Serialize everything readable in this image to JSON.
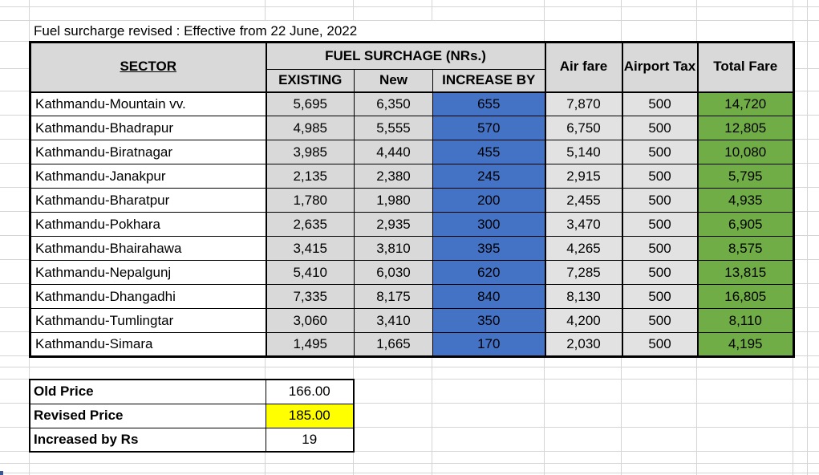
{
  "title": "Fuel surcharge revised : Effective from 22 June, 2022",
  "colors": {
    "header_bg": "#D9D9D9",
    "gray_cell": "#D9D9D9",
    "light_gray_cell": "#E2E2E2",
    "increase_bg": "#4472C4",
    "total_bg": "#70AD47",
    "revised_bg": "#FFFF00",
    "grid_line": "#D5D5D5"
  },
  "table": {
    "headers": {
      "sector": "SECTOR",
      "fuel_group": "FUEL SURCHAGE (NRs.)",
      "existing": "EXISTING",
      "new": "New",
      "increase_by": "INCREASE BY",
      "air_fare": "Air fare",
      "airport_tax": "Airport Tax",
      "total_fare": "Total Fare"
    },
    "rows": [
      {
        "sector": "Kathmandu-Mountain vv.",
        "existing": "5,695",
        "new": "6,350",
        "increase": "655",
        "air_fare": "7,870",
        "airport_tax": "500",
        "total_fare": "14,720"
      },
      {
        "sector": "Kathmandu-Bhadrapur",
        "existing": "4,985",
        "new": "5,555",
        "increase": "570",
        "air_fare": "6,750",
        "airport_tax": "500",
        "total_fare": "12,805"
      },
      {
        "sector": "Kathmandu-Biratnagar",
        "existing": "3,985",
        "new": "4,440",
        "increase": "455",
        "air_fare": "5,140",
        "airport_tax": "500",
        "total_fare": "10,080"
      },
      {
        "sector": "Kathmandu-Janakpur",
        "existing": "2,135",
        "new": "2,380",
        "increase": "245",
        "air_fare": "2,915",
        "airport_tax": "500",
        "total_fare": "5,795"
      },
      {
        "sector": "Kathmandu-Bharatpur",
        "existing": "1,780",
        "new": "1,980",
        "increase": "200",
        "air_fare": "2,455",
        "airport_tax": "500",
        "total_fare": "4,935"
      },
      {
        "sector": "Kathmandu-Pokhara",
        "existing": "2,635",
        "new": "2,935",
        "increase": "300",
        "air_fare": "3,470",
        "airport_tax": "500",
        "total_fare": "6,905"
      },
      {
        "sector": "Kathmandu-Bhairahawa",
        "existing": "3,415",
        "new": "3,810",
        "increase": "395",
        "air_fare": "4,265",
        "airport_tax": "500",
        "total_fare": "8,575"
      },
      {
        "sector": "Kathmandu-Nepalgunj",
        "existing": "5,410",
        "new": "6,030",
        "increase": "620",
        "air_fare": "7,285",
        "airport_tax": "500",
        "total_fare": "13,815"
      },
      {
        "sector": "Kathmandu-Dhangadhi",
        "existing": "7,335",
        "new": "8,175",
        "increase": "840",
        "air_fare": "8,130",
        "airport_tax": "500",
        "total_fare": "16,805"
      },
      {
        "sector": "Kathmandu-Tumlingtar",
        "existing": "3,060",
        "new": "3,410",
        "increase": "350",
        "air_fare": "4,200",
        "airport_tax": "500",
        "total_fare": "8,110"
      },
      {
        "sector": "Kathmandu-Simara",
        "existing": "1,495",
        "new": "1,665",
        "increase": "170",
        "air_fare": "2,030",
        "airport_tax": "500",
        "total_fare": "4,195"
      }
    ]
  },
  "price_summary": {
    "rows": [
      {
        "label": "Old Price",
        "value": "166.00",
        "highlight": false
      },
      {
        "label": "Revised Price",
        "value": "185.00",
        "highlight": true
      },
      {
        "label": "Increased by Rs",
        "value": "19",
        "highlight": false
      }
    ]
  }
}
